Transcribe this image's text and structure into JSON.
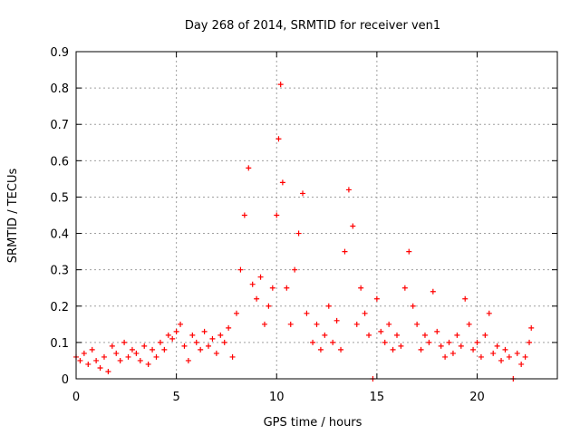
{
  "chart_data": {
    "type": "scatter",
    "title": "Day 268 of 2014, SRMTID for receiver ven1",
    "xlabel": "GPS time / hours",
    "ylabel": "SRMTID / TECUs",
    "xlim": [
      0,
      24
    ],
    "ylim": [
      0,
      0.9
    ],
    "xticks": [
      0,
      5,
      10,
      15,
      20
    ],
    "xtick_labels": [
      "0",
      "5",
      "10",
      "15",
      "20"
    ],
    "yticks": [
      0,
      0.1,
      0.2,
      0.3,
      0.4,
      0.5,
      0.6,
      0.7,
      0.8,
      0.9
    ],
    "ytick_labels": [
      "0",
      "0.1",
      "0.2",
      "0.3",
      "0.4",
      "0.5",
      "0.6",
      "0.7",
      "0.8",
      "0.9"
    ],
    "grid": true,
    "marker": "+",
    "series": [
      {
        "name": "SRMTID",
        "color": "#ff0000",
        "points": [
          [
            0.0,
            0.06
          ],
          [
            0.2,
            0.05
          ],
          [
            0.4,
            0.07
          ],
          [
            0.6,
            0.04
          ],
          [
            0.8,
            0.08
          ],
          [
            1.0,
            0.05
          ],
          [
            1.2,
            0.03
          ],
          [
            1.4,
            0.06
          ],
          [
            1.6,
            0.02
          ],
          [
            1.8,
            0.09
          ],
          [
            2.0,
            0.07
          ],
          [
            2.2,
            0.05
          ],
          [
            2.4,
            0.1
          ],
          [
            2.6,
            0.06
          ],
          [
            2.8,
            0.08
          ],
          [
            3.0,
            0.07
          ],
          [
            3.2,
            0.05
          ],
          [
            3.4,
            0.09
          ],
          [
            3.6,
            0.04
          ],
          [
            3.8,
            0.08
          ],
          [
            4.0,
            0.06
          ],
          [
            4.2,
            0.1
          ],
          [
            4.4,
            0.08
          ],
          [
            4.6,
            0.12
          ],
          [
            4.8,
            0.11
          ],
          [
            5.0,
            0.13
          ],
          [
            5.2,
            0.15
          ],
          [
            5.4,
            0.09
          ],
          [
            5.6,
            0.05
          ],
          [
            5.8,
            0.12
          ],
          [
            6.0,
            0.1
          ],
          [
            6.2,
            0.08
          ],
          [
            6.4,
            0.13
          ],
          [
            6.6,
            0.09
          ],
          [
            6.8,
            0.11
          ],
          [
            7.0,
            0.07
          ],
          [
            7.2,
            0.12
          ],
          [
            7.4,
            0.1
          ],
          [
            7.6,
            0.14
          ],
          [
            7.8,
            0.06
          ],
          [
            8.0,
            0.18
          ],
          [
            8.2,
            0.3
          ],
          [
            8.4,
            0.45
          ],
          [
            8.6,
            0.58
          ],
          [
            8.8,
            0.26
          ],
          [
            9.0,
            0.22
          ],
          [
            9.2,
            0.28
          ],
          [
            9.4,
            0.15
          ],
          [
            9.6,
            0.2
          ],
          [
            9.8,
            0.25
          ],
          [
            10.0,
            0.45
          ],
          [
            10.1,
            0.66
          ],
          [
            10.2,
            0.81
          ],
          [
            10.3,
            0.54
          ],
          [
            10.5,
            0.25
          ],
          [
            10.7,
            0.15
          ],
          [
            10.9,
            0.3
          ],
          [
            11.1,
            0.4
          ],
          [
            11.3,
            0.51
          ],
          [
            11.5,
            0.18
          ],
          [
            11.8,
            0.1
          ],
          [
            12.0,
            0.15
          ],
          [
            12.2,
            0.08
          ],
          [
            12.4,
            0.12
          ],
          [
            12.6,
            0.2
          ],
          [
            12.8,
            0.1
          ],
          [
            13.0,
            0.16
          ],
          [
            13.2,
            0.08
          ],
          [
            13.4,
            0.35
          ],
          [
            13.6,
            0.52
          ],
          [
            13.8,
            0.42
          ],
          [
            14.0,
            0.15
          ],
          [
            14.2,
            0.25
          ],
          [
            14.4,
            0.18
          ],
          [
            14.6,
            0.12
          ],
          [
            14.8,
            0.0
          ],
          [
            15.0,
            0.22
          ],
          [
            15.2,
            0.13
          ],
          [
            15.4,
            0.1
          ],
          [
            15.6,
            0.15
          ],
          [
            15.8,
            0.08
          ],
          [
            16.0,
            0.12
          ],
          [
            16.2,
            0.09
          ],
          [
            16.4,
            0.25
          ],
          [
            16.6,
            0.35
          ],
          [
            16.8,
            0.2
          ],
          [
            17.0,
            0.15
          ],
          [
            17.2,
            0.08
          ],
          [
            17.4,
            0.12
          ],
          [
            17.6,
            0.1
          ],
          [
            17.8,
            0.24
          ],
          [
            18.0,
            0.13
          ],
          [
            18.2,
            0.09
          ],
          [
            18.4,
            0.06
          ],
          [
            18.6,
            0.1
          ],
          [
            18.8,
            0.07
          ],
          [
            19.0,
            0.12
          ],
          [
            19.2,
            0.09
          ],
          [
            19.4,
            0.22
          ],
          [
            19.6,
            0.15
          ],
          [
            19.8,
            0.08
          ],
          [
            20.0,
            0.1
          ],
          [
            20.2,
            0.06
          ],
          [
            20.4,
            0.12
          ],
          [
            20.6,
            0.18
          ],
          [
            20.8,
            0.07
          ],
          [
            21.0,
            0.09
          ],
          [
            21.2,
            0.05
          ],
          [
            21.4,
            0.08
          ],
          [
            21.6,
            0.06
          ],
          [
            21.8,
            0.0
          ],
          [
            22.0,
            0.07
          ],
          [
            22.2,
            0.04
          ],
          [
            22.4,
            0.06
          ],
          [
            22.6,
            0.1
          ],
          [
            22.7,
            0.14
          ]
        ]
      }
    ]
  }
}
